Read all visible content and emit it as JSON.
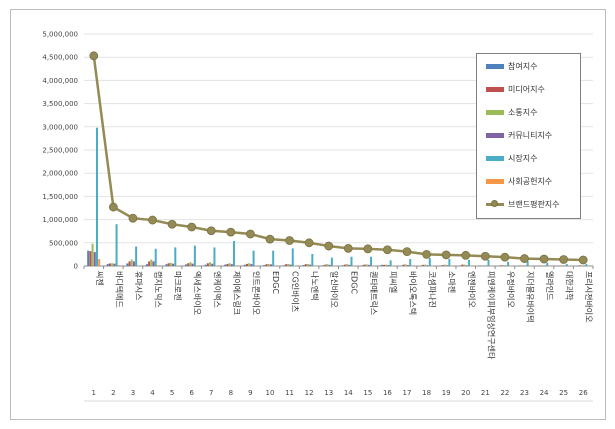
{
  "chart_data": {
    "type": "bar",
    "ylim": [
      0,
      5000000
    ],
    "y_ticks": [
      "0",
      "500,000",
      "1,000,000",
      "1,500,000",
      "2,000,000",
      "2,500,000",
      "3,000,000",
      "3,500,000",
      "4,000,000",
      "4,500,000",
      "5,000,000"
    ],
    "y_tick_values": [
      0,
      500000,
      1000000,
      1500000,
      2000000,
      2500000,
      3000000,
      3500000,
      4000000,
      4500000,
      5000000
    ],
    "grid": true,
    "legend_position": "top-right",
    "rank_labels": [
      "1",
      "2",
      "3",
      "4",
      "5",
      "6",
      "7",
      "8",
      "9",
      "10",
      "11",
      "12",
      "13",
      "14",
      "15",
      "16",
      "17",
      "18",
      "19",
      "20",
      "21",
      "22",
      "23",
      "24",
      "25",
      "26"
    ],
    "categories": [
      "씨젠",
      "바디텍메드",
      "휴마시스",
      "랩지노믹스",
      "마크로젠",
      "엑세스바이오",
      "엔케이맥스",
      "제이에스링크",
      "인트론바이오",
      "EDGC",
      "CG인바이츠",
      "나노엔텍",
      "알신바이오",
      "EDGC",
      "퀀타매트릭스",
      "피씨엘",
      "바이오톡스텍",
      "코셈파나진",
      "소마젠",
      "엔젠바이오",
      "피엔케이피부임상연구센타",
      "우정바이오",
      "지더블유바이텍",
      "엘라인드",
      "대한과학",
      "프리시젼바이오"
    ],
    "series": [
      {
        "name": "참여지수",
        "color": "#4f81bd",
        "values": [
          330000,
          45000,
          55000,
          40000,
          40000,
          35000,
          30000,
          30000,
          28000,
          20000,
          15000,
          20000,
          15000,
          15000,
          15000,
          25000,
          10000,
          10000,
          8000,
          10000,
          5000,
          5000,
          5000,
          5000,
          5000,
          5000
        ]
      },
      {
        "name": "미디어지수",
        "color": "#c0504d",
        "values": [
          320000,
          55000,
          100000,
          100000,
          60000,
          60000,
          60000,
          45000,
          45000,
          40000,
          40000,
          40000,
          30000,
          30000,
          30000,
          25000,
          30000,
          25000,
          20000,
          30000,
          10000,
          15000,
          10000,
          10000,
          10000,
          15000
        ]
      },
      {
        "name": "소통지수",
        "color": "#9bbb59",
        "values": [
          480000,
          60000,
          140000,
          140000,
          70000,
          80000,
          80000,
          60000,
          60000,
          45000,
          45000,
          45000,
          40000,
          40000,
          35000,
          30000,
          35000,
          30000,
          30000,
          30000,
          15000,
          20000,
          15000,
          15000,
          15000,
          15000
        ]
      },
      {
        "name": "커뮤니티지수",
        "color": "#8064a2",
        "values": [
          300000,
          50000,
          100000,
          100000,
          50000,
          50000,
          50000,
          40000,
          40000,
          35000,
          30000,
          30000,
          25000,
          25000,
          25000,
          20000,
          20000,
          15000,
          15000,
          15000,
          10000,
          10000,
          10000,
          10000,
          10000,
          10000
        ]
      },
      {
        "name": "시장지수",
        "color": "#4bacc6",
        "values": [
          2980000,
          900000,
          420000,
          370000,
          400000,
          440000,
          400000,
          540000,
          330000,
          330000,
          380000,
          260000,
          180000,
          200000,
          200000,
          120000,
          150000,
          170000,
          150000,
          130000,
          130000,
          90000,
          100000,
          70000,
          40000,
          40000
        ]
      },
      {
        "name": "사회공헌지수",
        "color": "#f79646",
        "values": [
          150000,
          20000,
          10000,
          15000,
          10000,
          10000,
          10000,
          8000,
          8000,
          8000,
          5000,
          5000,
          5000,
          5000,
          5000,
          5000,
          5000,
          5000,
          5000,
          5000,
          5000,
          5000,
          5000,
          5000,
          5000,
          5000
        ]
      }
    ],
    "line_series": {
      "name": "브랜드평판지수",
      "color": "#948a54",
      "values": [
        4530000,
        1270000,
        1030000,
        990000,
        900000,
        840000,
        760000,
        730000,
        690000,
        580000,
        550000,
        500000,
        430000,
        380000,
        370000,
        350000,
        310000,
        250000,
        240000,
        230000,
        210000,
        190000,
        160000,
        150000,
        140000,
        130000
      ]
    }
  }
}
